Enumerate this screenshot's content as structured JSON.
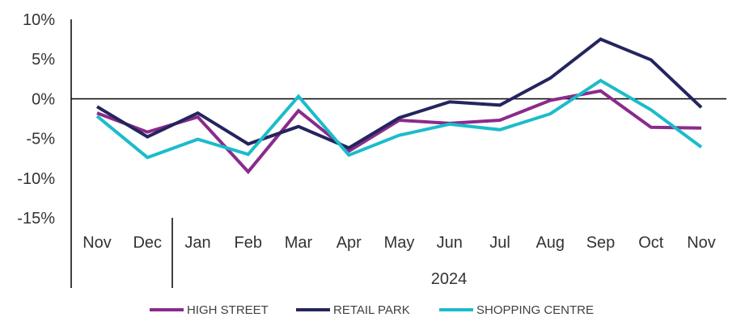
{
  "chart_data": {
    "type": "line",
    "categories": [
      "Nov",
      "Dec",
      "Jan",
      "Feb",
      "Mar",
      "Apr",
      "May",
      "Jun",
      "Jul",
      "Aug",
      "Sep",
      "Oct",
      "Nov"
    ],
    "year_label": "2024",
    "y_ticks": [
      "10%",
      "5%",
      "0%",
      "-5%",
      "-10%",
      "-15%"
    ],
    "ylim": [
      -15,
      10
    ],
    "grid": false,
    "legend_position": "bottom",
    "series": [
      {
        "name": "HIGH STREET",
        "color": "#8B2A8C",
        "values": [
          -1.8,
          -4.2,
          -2.3,
          -9.2,
          -1.5,
          -6.6,
          -2.7,
          -3.1,
          -2.7,
          -0.2,
          1.0,
          -3.6,
          -3.7
        ]
      },
      {
        "name": "RETAIL PARK",
        "color": "#24255E",
        "values": [
          -1.0,
          -4.8,
          -1.8,
          -5.7,
          -3.5,
          -6.2,
          -2.4,
          -0.4,
          -0.8,
          2.6,
          7.5,
          4.9,
          -1.1
        ]
      },
      {
        "name": "SHOPPING CENTRE",
        "color": "#1BBCCB",
        "values": [
          -2.2,
          -7.4,
          -5.1,
          -7.0,
          0.3,
          -7.1,
          -4.6,
          -3.2,
          -3.9,
          -1.9,
          2.3,
          -1.4,
          -6.1
        ]
      }
    ]
  }
}
